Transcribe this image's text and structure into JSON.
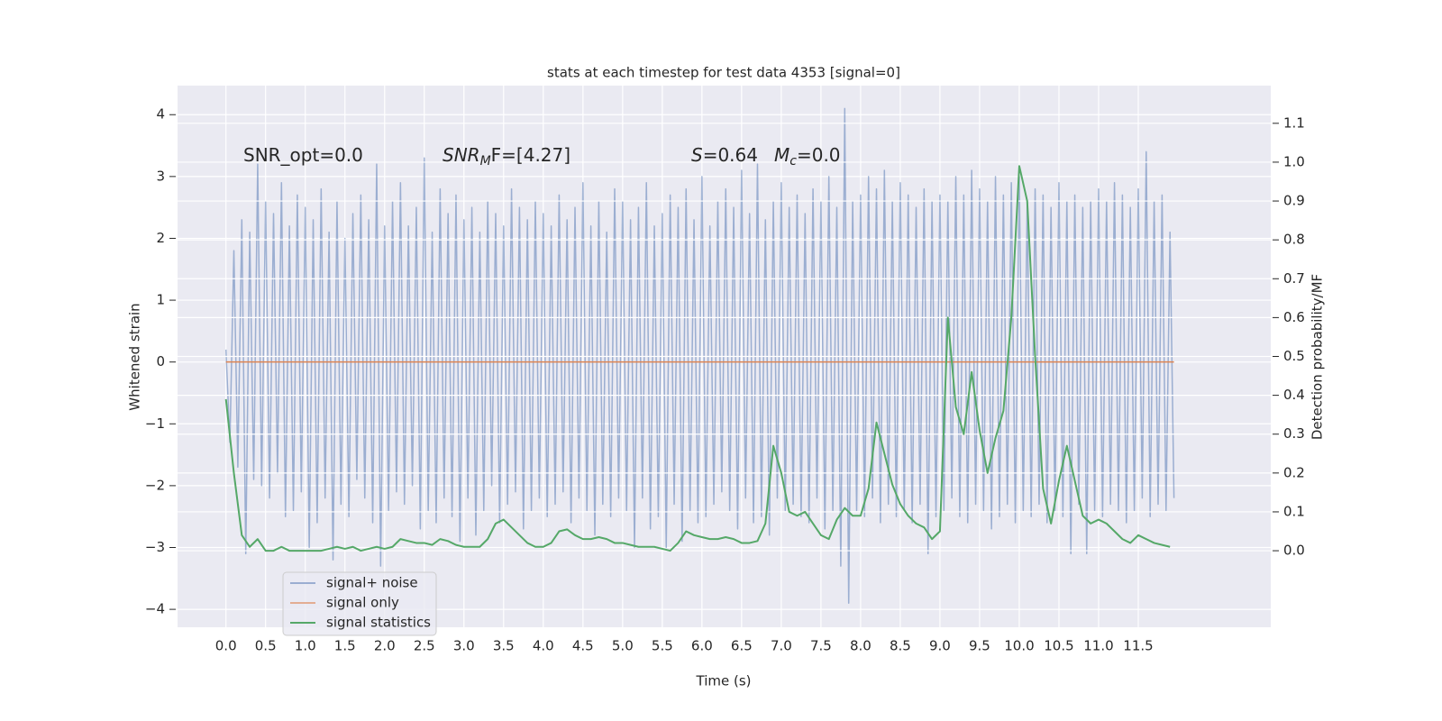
{
  "chart_data": {
    "type": "line",
    "title": "stats at each timestep for test data 4353 [signal=0]",
    "xlabel": "Time (s)",
    "ylabel": "Whitened strain",
    "y2label": "Detection probability/MF",
    "annotations": [
      {
        "text": "SNR_opt=0.0"
      },
      {
        "text": "SNR",
        "sub": "M",
        "rest": "F=[4.27]",
        "italic": true
      },
      {
        "text": "S",
        "rest": "=0.64",
        "italic": true
      },
      {
        "text": "M",
        "sub": "c",
        "rest": "=0.0",
        "italic": true
      }
    ],
    "xlim": [
      -0.61,
      13.17
    ],
    "ylim": [
      -4.29,
      4.47
    ],
    "y2lim": [
      -0.197,
      1.197
    ],
    "xticks": [
      {
        "value": 0,
        "label": "0.0"
      },
      0.5,
      {
        "value": 1,
        "label": "1.0"
      },
      1.5,
      {
        "value": 2,
        "label": "2.0"
      },
      2.5,
      {
        "value": 3,
        "label": "3.0"
      },
      3.5,
      {
        "value": 4,
        "label": "4.0"
      },
      4.5,
      {
        "value": 5,
        "label": "5.0"
      },
      5.5,
      {
        "value": 6,
        "label": "6.0"
      },
      6.5,
      {
        "value": 7,
        "label": "7.0"
      },
      7.5,
      {
        "value": 8,
        "label": "8.0"
      },
      8.5,
      {
        "value": 9,
        "label": "9.0"
      },
      9.5,
      {
        "value": 10,
        "label": "10.0"
      },
      10.5,
      {
        "value": 11,
        "label": "11.0"
      },
      11.5
    ],
    "yticks": [
      {
        "value": -4,
        "label": "−4"
      },
      {
        "value": -3,
        "label": "−3"
      },
      {
        "value": -2,
        "label": "−2"
      },
      {
        "value": -1,
        "label": "−1"
      },
      0,
      1,
      2,
      3,
      4
    ],
    "y2ticks": [
      {
        "value": 0,
        "label": "0.0"
      },
      0.1,
      0.2,
      0.3,
      0.4,
      0.5,
      0.6,
      0.7,
      0.8,
      0.9,
      {
        "value": 1,
        "label": "1.0"
      },
      1.1
    ],
    "grid": true,
    "legend": "lower left",
    "series": [
      {
        "name": "signal+ noise",
        "color": "#4c72b0",
        "alpha": 0.5,
        "x": [
          0,
          0.05,
          0.1,
          0.15,
          0.2,
          0.25,
          0.3,
          0.35,
          0.4,
          0.45,
          0.5,
          0.55,
          0.6,
          0.65,
          0.7,
          0.75,
          0.8,
          0.85,
          0.9,
          0.95,
          1,
          1.05,
          1.1,
          1.15,
          1.2,
          1.25,
          1.3,
          1.35,
          1.4,
          1.45,
          1.5,
          1.55,
          1.6,
          1.65,
          1.7,
          1.75,
          1.8,
          1.85,
          1.9,
          1.95,
          2,
          2.05,
          2.1,
          2.15,
          2.2,
          2.25,
          2.3,
          2.35,
          2.4,
          2.45,
          2.5,
          2.55,
          2.6,
          2.65,
          2.7,
          2.75,
          2.8,
          2.85,
          2.9,
          2.95,
          3,
          3.05,
          3.1,
          3.15,
          3.2,
          3.25,
          3.3,
          3.35,
          3.4,
          3.45,
          3.5,
          3.55,
          3.6,
          3.65,
          3.7,
          3.75,
          3.8,
          3.85,
          3.9,
          3.95,
          4,
          4.05,
          4.1,
          4.15,
          4.2,
          4.25,
          4.3,
          4.35,
          4.4,
          4.45,
          4.5,
          4.55,
          4.6,
          4.65,
          4.7,
          4.75,
          4.8,
          4.85,
          4.9,
          4.95,
          5,
          5.05,
          5.1,
          5.15,
          5.2,
          5.25,
          5.3,
          5.35,
          5.4,
          5.45,
          5.5,
          5.55,
          5.6,
          5.65,
          5.7,
          5.75,
          5.8,
          5.85,
          5.9,
          5.95,
          6,
          6.05,
          6.1,
          6.15,
          6.2,
          6.25,
          6.3,
          6.35,
          6.4,
          6.45,
          6.5,
          6.55,
          6.6,
          6.65,
          6.7,
          6.75,
          6.8,
          6.85,
          6.9,
          6.95,
          7,
          7.05,
          7.1,
          7.15,
          7.2,
          7.25,
          7.3,
          7.35,
          7.4,
          7.45,
          7.5,
          7.55,
          7.6,
          7.65,
          7.7,
          7.75,
          7.8,
          7.85,
          7.9,
          7.95,
          8,
          8.05,
          8.1,
          8.15,
          8.2,
          8.25,
          8.3,
          8.35,
          8.4,
          8.45,
          8.5,
          8.55,
          8.6,
          8.65,
          8.7,
          8.75,
          8.8,
          8.85,
          8.9,
          8.95,
          9,
          9.05,
          9.1,
          9.15,
          9.2,
          9.25,
          9.3,
          9.35,
          9.4,
          9.45,
          9.5,
          9.55,
          9.6,
          9.65,
          9.7,
          9.75,
          9.8,
          9.85,
          9.9,
          9.95,
          10,
          10.05,
          10.1,
          10.15,
          10.2,
          10.25,
          10.3,
          10.35,
          10.4,
          10.45,
          10.5,
          10.55,
          10.6,
          10.65,
          10.7,
          10.75,
          10.8,
          10.85,
          10.9,
          10.95,
          11,
          11.05,
          11.1,
          11.15,
          11.2,
          11.25,
          11.3,
          11.35,
          11.4,
          11.45,
          11.5,
          11.55,
          11.6,
          11.65,
          11.7,
          11.75,
          11.8,
          11.85,
          11.9,
          11.95
        ],
        "values": [
          0.2,
          -1.3,
          1.8,
          -1.7,
          2.3,
          -3.1,
          2.1,
          -1.9,
          3.2,
          -2.0,
          2.6,
          -2.2,
          2.4,
          -1.8,
          2.9,
          -2.5,
          2.2,
          -2.4,
          2.7,
          -2.1,
          2.5,
          -3.0,
          2.3,
          -2.6,
          2.8,
          -2.2,
          2.1,
          -3.2,
          2.6,
          -2.3,
          2.0,
          -2.5,
          2.4,
          -1.9,
          2.7,
          -2.2,
          2.3,
          -2.6,
          3.2,
          -3.3,
          2.2,
          -2.4,
          2.6,
          -2.1,
          2.9,
          -2.3,
          2.2,
          -2.0,
          2.5,
          -2.7,
          3.3,
          -2.4,
          2.1,
          -2.6,
          2.8,
          -2.2,
          2.4,
          -2.5,
          2.7,
          -2.9,
          2.3,
          -2.2,
          2.5,
          -2.8,
          2.1,
          -2.4,
          2.6,
          -2.0,
          2.4,
          -2.6,
          2.2,
          -2.3,
          2.8,
          -2.1,
          2.5,
          -2.7,
          2.3,
          -2.4,
          2.6,
          -2.2,
          2.4,
          -2.5,
          2.2,
          -2.3,
          2.7,
          -2.1,
          2.3,
          -2.6,
          2.5,
          -2.2,
          2.9,
          -2.4,
          2.2,
          -2.8,
          2.6,
          -2.3,
          2.1,
          -2.5,
          2.8,
          -2.2,
          2.6,
          -2.4,
          2.3,
          -3.0,
          2.5,
          -2.2,
          2.9,
          -2.7,
          2.2,
          -2.5,
          2.4,
          -3.0,
          2.7,
          -2.3,
          2.5,
          -2.9,
          2.8,
          -2.4,
          2.3,
          -2.6,
          3.0,
          -2.5,
          2.2,
          -2.3,
          2.6,
          -2.1,
          2.8,
          -2.4,
          2.5,
          -2.7,
          3.1,
          -2.2,
          2.4,
          -2.6,
          3.2,
          -2.5,
          2.3,
          -2.8,
          2.6,
          -2.2,
          2.9,
          -2.4,
          2.5,
          -2.3,
          2.7,
          -2.5,
          2.4,
          -2.6,
          2.8,
          -2.2,
          2.6,
          -2.7,
          3.0,
          -2.4,
          2.5,
          -3.3,
          4.1,
          -3.9,
          2.6,
          -2.4,
          2.7,
          -2.5,
          3.0,
          -2.2,
          2.8,
          -2.6,
          3.1,
          -2.3,
          2.6,
          -2.5,
          2.9,
          -2.4,
          2.7,
          -2.6,
          2.5,
          -2.3,
          2.8,
          -3.1,
          2.6,
          -2.5,
          2.7,
          -2.4,
          2.6,
          -2.2,
          3.0,
          -2.5,
          2.7,
          -2.6,
          3.1,
          -2.3,
          2.8,
          -2.4,
          2.6,
          -2.7,
          3.0,
          -2.5,
          2.7,
          -2.3,
          2.9,
          -2.6,
          3.0,
          -2.4,
          2.6,
          -2.5,
          2.8,
          -2.3,
          2.7,
          -2.6,
          2.5,
          -2.4,
          2.9,
          -2.5,
          2.6,
          -3.1,
          2.7,
          -2.3,
          2.5,
          -3.1,
          2.6,
          -2.4,
          2.8,
          -2.5,
          2.6,
          -2.3,
          2.9,
          -2.4,
          2.7,
          -2.6,
          2.5,
          -2.4,
          2.8,
          -2.2,
          3.4,
          -2.5,
          2.6,
          -2.3,
          2.7,
          -2.4,
          2.1,
          -2.2
        ]
      },
      {
        "name": "signal only",
        "color": "#dd8452",
        "x": [
          0,
          11.95
        ],
        "values": [
          0,
          0
        ]
      },
      {
        "name": "signal statistics",
        "color": "#55a868",
        "axis": "y2",
        "x": [
          0,
          0.1,
          0.2,
          0.3,
          0.4,
          0.5,
          0.6,
          0.7,
          0.8,
          0.9,
          1,
          1.1,
          1.2,
          1.3,
          1.4,
          1.5,
          1.6,
          1.7,
          1.8,
          1.9,
          2,
          2.1,
          2.2,
          2.3,
          2.4,
          2.5,
          2.6,
          2.7,
          2.8,
          2.9,
          3,
          3.1,
          3.2,
          3.3,
          3.4,
          3.5,
          3.6,
          3.7,
          3.8,
          3.9,
          4,
          4.1,
          4.2,
          4.3,
          4.4,
          4.5,
          4.6,
          4.7,
          4.8,
          4.9,
          5,
          5.1,
          5.2,
          5.3,
          5.4,
          5.5,
          5.6,
          5.7,
          5.8,
          5.9,
          6,
          6.1,
          6.2,
          6.3,
          6.4,
          6.5,
          6.6,
          6.7,
          6.8,
          6.9,
          7,
          7.1,
          7.2,
          7.3,
          7.4,
          7.5,
          7.6,
          7.7,
          7.8,
          7.9,
          8,
          8.1,
          8.2,
          8.3,
          8.4,
          8.5,
          8.6,
          8.7,
          8.8,
          8.9,
          9,
          9.1,
          9.2,
          9.3,
          9.4,
          9.5,
          9.6,
          9.7,
          9.8,
          9.9,
          10,
          10.1,
          10.2,
          10.3,
          10.4,
          10.5,
          10.6,
          10.7,
          10.8,
          10.9,
          11,
          11.1,
          11.2,
          11.3,
          11.4,
          11.5,
          11.6,
          11.7,
          11.8,
          11.9
        ],
        "values": [
          0.39,
          0.2,
          0.04,
          0.01,
          0.03,
          0.0,
          0.0,
          0.01,
          0.0,
          0.0,
          0.0,
          0.0,
          0.0,
          0.005,
          0.01,
          0.005,
          0.01,
          0.0,
          0.005,
          0.01,
          0.005,
          0.01,
          0.03,
          0.025,
          0.02,
          0.02,
          0.015,
          0.03,
          0.025,
          0.015,
          0.01,
          0.01,
          0.01,
          0.03,
          0.07,
          0.08,
          0.06,
          0.04,
          0.02,
          0.01,
          0.01,
          0.02,
          0.05,
          0.055,
          0.04,
          0.03,
          0.03,
          0.035,
          0.03,
          0.02,
          0.02,
          0.015,
          0.01,
          0.01,
          0.01,
          0.005,
          0.0,
          0.02,
          0.05,
          0.04,
          0.035,
          0.03,
          0.03,
          0.035,
          0.03,
          0.02,
          0.02,
          0.025,
          0.07,
          0.27,
          0.2,
          0.1,
          0.09,
          0.1,
          0.07,
          0.04,
          0.03,
          0.08,
          0.11,
          0.09,
          0.09,
          0.16,
          0.33,
          0.25,
          0.17,
          0.12,
          0.09,
          0.07,
          0.06,
          0.03,
          0.05,
          0.6,
          0.37,
          0.3,
          0.46,
          0.31,
          0.2,
          0.29,
          0.36,
          0.6,
          0.99,
          0.9,
          0.5,
          0.16,
          0.07,
          0.18,
          0.27,
          0.18,
          0.09,
          0.07,
          0.08,
          0.07,
          0.05,
          0.03,
          0.02,
          0.04,
          0.03,
          0.02,
          0.015,
          0.01
        ]
      }
    ]
  }
}
